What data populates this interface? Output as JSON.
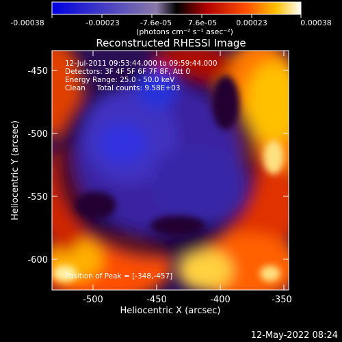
{
  "colorbar": {
    "tick_labels": [
      "-0.00038",
      "-0.00023",
      "-7.6e-05",
      "7.6e-05",
      "0.00023",
      "0.00038"
    ],
    "unit_label": "(photons cm⁻² s⁻¹ asec⁻²)"
  },
  "plot": {
    "title": "Reconstructed RHESSI Image",
    "info_lines": [
      "12-Jul-2011 09:53:44.000 to 09:59:44.000",
      "Detectors: 3F 4F 5F 6F 7F 8F, Att 0",
      "Energy Range: 25.0 - 50.0 keV",
      "Clean     Total counts: 9.58E+03"
    ],
    "peak_label": "Position of Peak = [-348,-457]",
    "xlabel": "Heliocentric X (arcsec)",
    "ylabel": "Heliocentric Y (arcsec)",
    "x_ticks": [
      "-500",
      "-450",
      "-400",
      "-350"
    ],
    "y_ticks": [
      "-450",
      "-500",
      "-550",
      "-600"
    ]
  },
  "timestamp": "12-May-2022 08:24"
}
